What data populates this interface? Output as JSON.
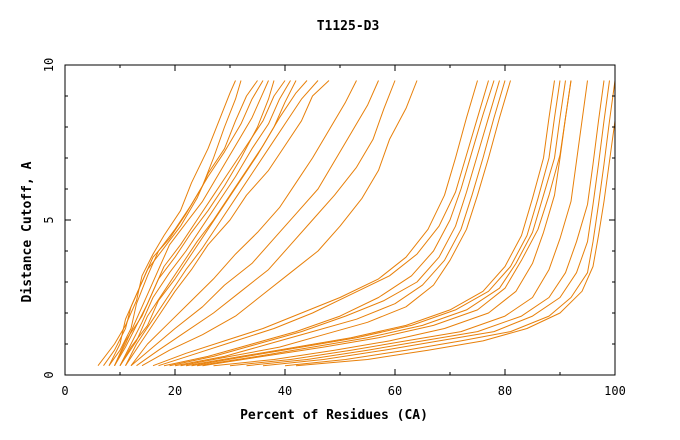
{
  "chart_data": {
    "type": "line",
    "title": "T1125-D3",
    "xlabel": "Percent of Residues (CA)",
    "ylabel": "Distance Cutoff, A",
    "xlim": [
      0,
      100
    ],
    "ylim": [
      0,
      10
    ],
    "xticks": [
      "0",
      "20",
      "40",
      "60",
      "80",
      "100"
    ],
    "yticks": [
      "0",
      "5",
      "10"
    ],
    "grid": false,
    "legend": "none",
    "line_color": "#e8800a",
    "series": [
      {
        "x": [
          6,
          9,
          11,
          13,
          14,
          16,
          18,
          21,
          23,
          26,
          28,
          30,
          31,
          31
        ],
        "y": [
          0.3,
          1.0,
          1.6,
          2.4,
          3.2,
          3.9,
          4.5,
          5.3,
          6.2,
          7.3,
          8.2,
          9.1,
          9.5,
          9.5
        ]
      },
      {
        "x": [
          7,
          9,
          11,
          12,
          14,
          16,
          19,
          22,
          25,
          27,
          29,
          31,
          32
        ],
        "y": [
          0.3,
          0.8,
          1.5,
          2.2,
          3.0,
          3.8,
          4.4,
          5.2,
          6.1,
          7.0,
          8.0,
          8.9,
          9.5
        ]
      },
      {
        "x": [
          8,
          10,
          11,
          13,
          15,
          18,
          21,
          24,
          26,
          29,
          31,
          33,
          35
        ],
        "y": [
          0.3,
          1.0,
          1.8,
          2.6,
          3.4,
          4.1,
          4.8,
          5.7,
          6.5,
          7.3,
          8.2,
          9.0,
          9.5
        ]
      },
      {
        "x": [
          8,
          10,
          12,
          13,
          15,
          17,
          20,
          23,
          26,
          29,
          32,
          34,
          36
        ],
        "y": [
          0.3,
          0.8,
          1.5,
          2.3,
          3.2,
          4.0,
          4.7,
          5.5,
          6.4,
          7.2,
          8.1,
          8.9,
          9.5
        ]
      },
      {
        "x": [
          9,
          11,
          13,
          15,
          17,
          19,
          22,
          25,
          28,
          31,
          34,
          36,
          37
        ],
        "y": [
          0.3,
          1.0,
          1.8,
          2.6,
          3.4,
          4.2,
          4.9,
          5.6,
          6.5,
          7.4,
          8.3,
          9.1,
          9.5
        ]
      },
      {
        "x": [
          9,
          11,
          13,
          15,
          17,
          20,
          23,
          26,
          29,
          32,
          35,
          37,
          38
        ],
        "y": [
          0.3,
          0.9,
          1.6,
          2.3,
          3.1,
          3.8,
          4.6,
          5.3,
          6.1,
          7.0,
          8.0,
          8.9,
          9.5
        ]
      },
      {
        "x": [
          9,
          11,
          14,
          16,
          18,
          21,
          24,
          27,
          30,
          33,
          36,
          38,
          40
        ],
        "y": [
          0.3,
          1.1,
          1.9,
          2.7,
          3.5,
          4.2,
          5.0,
          5.8,
          6.6,
          7.4,
          8.2,
          9.0,
          9.5
        ]
      },
      {
        "x": [
          10,
          12,
          14,
          16,
          19,
          22,
          25,
          28,
          31,
          34,
          37,
          39,
          41
        ],
        "y": [
          0.3,
          1.0,
          1.7,
          2.5,
          3.3,
          4.0,
          4.8,
          5.6,
          6.4,
          7.3,
          8.1,
          8.9,
          9.5
        ]
      },
      {
        "x": [
          10,
          12,
          15,
          17,
          20,
          23,
          26,
          29,
          32,
          35,
          38,
          40,
          42
        ],
        "y": [
          0.3,
          0.9,
          1.6,
          2.4,
          3.1,
          3.9,
          4.7,
          5.5,
          6.3,
          7.1,
          8.0,
          8.8,
          9.5
        ]
      },
      {
        "x": [
          10,
          13,
          15,
          18,
          21,
          24,
          27,
          30,
          33,
          36,
          39,
          42,
          44
        ],
        "y": [
          0.3,
          1.1,
          1.9,
          2.7,
          3.5,
          4.3,
          5.0,
          5.8,
          6.6,
          7.4,
          8.3,
          9.1,
          9.5
        ]
      },
      {
        "x": [
          11,
          13,
          16,
          19,
          22,
          25,
          28,
          31,
          34,
          37,
          40,
          43,
          46
        ],
        "y": [
          0.3,
          1.0,
          1.8,
          2.6,
          3.4,
          4.1,
          4.9,
          5.7,
          6.5,
          7.3,
          8.1,
          8.9,
          9.5
        ]
      },
      {
        "x": [
          11,
          14,
          17,
          20,
          23,
          26,
          30,
          33,
          37,
          40,
          43,
          45,
          48
        ],
        "y": [
          0.3,
          1.1,
          1.9,
          2.7,
          3.4,
          4.2,
          5.0,
          5.8,
          6.6,
          7.4,
          8.2,
          9.0,
          9.5
        ]
      },
      {
        "x": [
          12,
          15,
          19,
          23,
          27,
          31,
          35,
          39,
          42,
          45,
          48,
          51,
          53
        ],
        "y": [
          0.3,
          1.0,
          1.7,
          2.4,
          3.1,
          3.9,
          4.6,
          5.4,
          6.2,
          7.0,
          7.9,
          8.8,
          9.5
        ]
      },
      {
        "x": [
          12,
          16,
          20,
          25,
          29,
          34,
          38,
          42,
          46,
          49,
          52,
          55,
          57
        ],
        "y": [
          0.3,
          0.9,
          1.5,
          2.2,
          2.9,
          3.6,
          4.4,
          5.2,
          6.0,
          6.9,
          7.8,
          8.7,
          9.5
        ]
      },
      {
        "x": [
          13,
          17,
          22,
          27,
          32,
          37,
          41,
          45,
          49,
          53,
          56,
          58,
          60
        ],
        "y": [
          0.3,
          0.8,
          1.4,
          2.0,
          2.7,
          3.4,
          4.2,
          5.0,
          5.8,
          6.7,
          7.6,
          8.6,
          9.5
        ]
      },
      {
        "x": [
          14,
          19,
          25,
          31,
          36,
          41,
          46,
          50,
          54,
          57,
          59,
          62,
          64
        ],
        "y": [
          0.3,
          0.8,
          1.3,
          1.9,
          2.6,
          3.3,
          4.0,
          4.8,
          5.7,
          6.6,
          7.6,
          8.6,
          9.5
        ]
      },
      {
        "x": [
          16,
          22,
          29,
          36,
          43,
          50,
          57,
          62,
          66,
          69,
          71,
          73,
          75
        ],
        "y": [
          0.3,
          0.7,
          1.1,
          1.5,
          2.0,
          2.5,
          3.1,
          3.8,
          4.7,
          5.8,
          7.0,
          8.3,
          9.5
        ]
      },
      {
        "x": [
          17,
          24,
          31,
          38,
          45,
          52,
          59,
          64,
          68,
          71,
          73,
          75,
          77
        ],
        "y": [
          0.3,
          0.7,
          1.1,
          1.5,
          2.0,
          2.6,
          3.2,
          3.9,
          4.8,
          5.9,
          7.1,
          8.3,
          9.5
        ]
      },
      {
        "x": [
          18,
          26,
          34,
          42,
          50,
          57,
          63,
          67,
          70,
          72,
          74,
          76,
          78
        ],
        "y": [
          0.3,
          0.6,
          1.0,
          1.4,
          1.9,
          2.5,
          3.2,
          4.0,
          5.0,
          6.0,
          7.2,
          8.4,
          9.5
        ]
      },
      {
        "x": [
          19,
          27,
          35,
          43,
          51,
          58,
          64,
          68,
          71,
          73,
          75,
          77,
          79
        ],
        "y": [
          0.3,
          0.6,
          1.0,
          1.4,
          1.9,
          2.4,
          3.0,
          3.8,
          4.8,
          5.9,
          7.1,
          8.3,
          9.5
        ]
      },
      {
        "x": [
          20,
          29,
          37,
          45,
          53,
          60,
          65,
          69,
          72,
          74,
          76,
          78,
          80
        ],
        "y": [
          0.3,
          0.6,
          1.0,
          1.4,
          1.8,
          2.3,
          2.9,
          3.7,
          4.7,
          5.8,
          7.0,
          8.3,
          9.5
        ]
      },
      {
        "x": [
          21,
          30,
          39,
          47,
          55,
          62,
          67,
          70,
          73,
          75,
          77,
          79,
          81
        ],
        "y": [
          0.3,
          0.6,
          0.9,
          1.3,
          1.7,
          2.2,
          2.9,
          3.7,
          4.7,
          5.8,
          7.0,
          8.3,
          9.5
        ]
      },
      {
        "x": [
          22,
          32,
          42,
          52,
          62,
          70,
          76,
          80,
          83,
          85,
          87,
          88,
          89
        ],
        "y": [
          0.3,
          0.6,
          0.9,
          1.2,
          1.6,
          2.1,
          2.7,
          3.5,
          4.5,
          5.7,
          7.0,
          8.3,
          9.5
        ]
      },
      {
        "x": [
          23,
          33,
          43,
          53,
          63,
          71,
          77,
          81,
          84,
          86,
          88,
          89,
          90
        ],
        "y": [
          0.3,
          0.6,
          0.9,
          1.2,
          1.6,
          2.1,
          2.7,
          3.5,
          4.5,
          5.7,
          7.0,
          8.3,
          9.5
        ]
      },
      {
        "x": [
          24,
          35,
          45,
          55,
          65,
          73,
          79,
          82,
          85,
          87,
          89,
          90,
          91
        ],
        "y": [
          0.3,
          0.6,
          0.9,
          1.2,
          1.6,
          2.1,
          2.8,
          3.6,
          4.6,
          5.8,
          7.0,
          8.3,
          9.5
        ]
      },
      {
        "x": [
          25,
          36,
          47,
          57,
          67,
          75,
          80,
          83,
          86,
          88,
          90,
          91,
          92
        ],
        "y": [
          0.3,
          0.6,
          0.9,
          1.2,
          1.6,
          2.1,
          2.8,
          3.7,
          4.7,
          5.8,
          7.1,
          8.3,
          9.5
        ]
      },
      {
        "x": [
          27,
          38,
          49,
          59,
          69,
          77,
          82,
          85,
          87,
          89,
          90,
          91,
          92
        ],
        "y": [
          0.3,
          0.5,
          0.8,
          1.1,
          1.5,
          2.0,
          2.7,
          3.6,
          4.6,
          5.8,
          7.0,
          8.3,
          9.5
        ]
      },
      {
        "x": [
          30,
          41,
          52,
          62,
          72,
          80,
          85,
          88,
          90,
          92,
          93,
          94,
          95
        ],
        "y": [
          0.3,
          0.5,
          0.8,
          1.1,
          1.4,
          1.9,
          2.5,
          3.4,
          4.4,
          5.6,
          6.9,
          8.2,
          9.5
        ]
      },
      {
        "x": [
          33,
          44,
          55,
          65,
          75,
          83,
          88,
          91,
          93,
          95,
          96,
          97,
          98
        ],
        "y": [
          0.3,
          0.5,
          0.8,
          1.1,
          1.4,
          1.9,
          2.5,
          3.3,
          4.3,
          5.5,
          6.8,
          8.2,
          9.5
        ]
      },
      {
        "x": [
          36,
          47,
          58,
          68,
          78,
          85,
          90,
          93,
          95,
          96,
          97,
          98,
          99
        ],
        "y": [
          0.3,
          0.5,
          0.8,
          1.1,
          1.4,
          1.9,
          2.5,
          3.3,
          4.3,
          5.5,
          6.8,
          8.2,
          9.5
        ]
      },
      {
        "x": [
          40,
          51,
          62,
          72,
          81,
          88,
          92,
          95,
          96,
          97,
          98,
          99,
          100
        ],
        "y": [
          0.3,
          0.5,
          0.8,
          1.1,
          1.4,
          1.9,
          2.5,
          3.3,
          4.3,
          5.5,
          6.8,
          8.2,
          9.5
        ]
      },
      {
        "x": [
          42,
          55,
          66,
          76,
          84,
          90,
          94,
          96,
          97,
          98,
          99,
          100,
          100
        ],
        "y": [
          0.3,
          0.5,
          0.8,
          1.1,
          1.5,
          2.0,
          2.7,
          3.5,
          4.5,
          5.6,
          6.9,
          8.2,
          9.5
        ]
      }
    ]
  }
}
